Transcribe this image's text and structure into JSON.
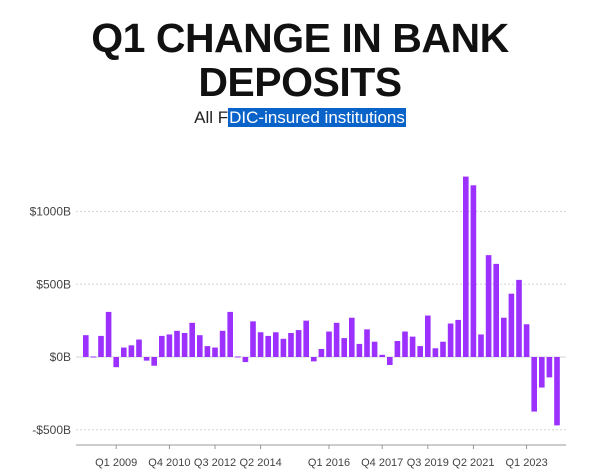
{
  "title_line1": "Q1 CHANGE IN BANK",
  "title_line2": "DEPOSITS",
  "subtitle_plain": "All F",
  "subtitle_selected": "DIC-insured institutions",
  "chart_data": {
    "type": "bar",
    "title": "Q1 CHANGE IN BANK DEPOSITS",
    "subtitle": "All FDIC-insured institutions",
    "xlabel": "",
    "ylabel": "",
    "ylim": [
      -500,
      1250
    ],
    "grid": true,
    "bar_color": "#9b30ff",
    "y_ticks": [
      {
        "value": 1000,
        "label": "$1000B"
      },
      {
        "value": 500,
        "label": "$500B"
      },
      {
        "value": 0,
        "label": "$0B"
      },
      {
        "value": -500,
        "label": "-$500B"
      }
    ],
    "x_tick_labels": [
      {
        "index": 4,
        "label": "Q1 2009"
      },
      {
        "index": 11,
        "label": "Q4 2010"
      },
      {
        "index": 17,
        "label": "Q3 2012"
      },
      {
        "index": 23,
        "label": "Q2 2014"
      },
      {
        "index": 32,
        "label": "Q1 2016"
      },
      {
        "index": 39,
        "label": "Q4 2017"
      },
      {
        "index": 45,
        "label": "Q3 2019"
      },
      {
        "index": 51,
        "label": "Q2 2021"
      },
      {
        "index": 58,
        "label": "Q1 2023"
      }
    ],
    "values": [
      150,
      0,
      145,
      310,
      -70,
      65,
      80,
      120,
      -25,
      -60,
      145,
      155,
      180,
      165,
      235,
      150,
      75,
      65,
      180,
      310,
      0,
      -35,
      245,
      170,
      145,
      170,
      125,
      165,
      185,
      250,
      -30,
      55,
      175,
      235,
      130,
      270,
      90,
      190,
      105,
      15,
      -55,
      110,
      175,
      140,
      75,
      285,
      60,
      105,
      230,
      255,
      1240,
      1180,
      155,
      700,
      640,
      270,
      435,
      530,
      225,
      -375,
      -210,
      -140,
      -470
    ]
  }
}
